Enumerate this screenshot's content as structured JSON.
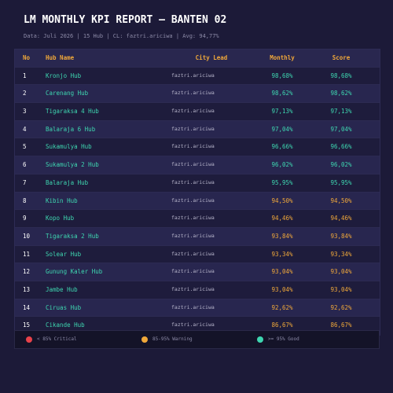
{
  "header": {
    "title": "LM MONTHLY KPI REPORT — BANTEN 02",
    "subtitle": "Data: Juli 2026 | 15 Hub | CL: faztri.ariciwa | Avg: 94,77%"
  },
  "table": {
    "columns": [
      "No",
      "Hub Name",
      "City Lead",
      "Monthly",
      "Score"
    ],
    "rows": [
      [
        "1",
        "Kronjo Hub",
        "faztri.ariciwa",
        "98,68%",
        "98,68%"
      ],
      [
        "2",
        "Carenang Hub",
        "faztri.ariciwa",
        "98,62%",
        "98,62%"
      ],
      [
        "3",
        "Tigaraksa 4 Hub",
        "faztri.ariciwa",
        "97,13%",
        "97,13%"
      ],
      [
        "4",
        "Balaraja 6 Hub",
        "faztri.ariciwa",
        "97,04%",
        "97,04%"
      ],
      [
        "5",
        "Sukamulya Hub",
        "faztri.ariciwa",
        "96,66%",
        "96,66%"
      ],
      [
        "6",
        "Sukamulya 2 Hub",
        "faztri.ariciwa",
        "96,02%",
        "96,02%"
      ],
      [
        "7",
        "Balaraja Hub",
        "faztri.ariciwa",
        "95,95%",
        "95,95%"
      ],
      [
        "8",
        "Kibin Hub",
        "faztri.ariciwa",
        "94,50%",
        "94,50%"
      ],
      [
        "9",
        "Kopo Hub",
        "faztri.ariciwa",
        "94,46%",
        "94,46%"
      ],
      [
        "10",
        "Tigaraksa 2 Hub",
        "faztri.ariciwa",
        "93,84%",
        "93,84%"
      ],
      [
        "11",
        "Solear Hub",
        "faztri.ariciwa",
        "93,34%",
        "93,34%"
      ],
      [
        "12",
        "Gunung Kaler Hub",
        "faztri.ariciwa",
        "93,04%",
        "93,04%"
      ],
      [
        "13",
        "Jambe Hub",
        "faztri.ariciwa",
        "93,04%",
        "93,04%"
      ],
      [
        "14",
        "Ciruas Hub",
        "faztri.ariciwa",
        "92,62%",
        "92,62%"
      ],
      [
        "15",
        "Cikande Hub",
        "faztri.ariciwa",
        "86,67%",
        "86,67%"
      ]
    ],
    "value_colors": [
      "#3ed6b0",
      "#3ed6b0",
      "#3ed6b0",
      "#3ed6b0",
      "#3ed6b0",
      "#3ed6b0",
      "#3ed6b0",
      "#f0a83a",
      "#f0a83a",
      "#f0a83a",
      "#f0a83a",
      "#f0a83a",
      "#f0a83a",
      "#f0a83a",
      "#f0a83a"
    ]
  },
  "legend": [
    {
      "label": "< 85% Critical",
      "color": "#e8424a"
    },
    {
      "label": "85-95% Warning",
      "color": "#f0a83a"
    },
    {
      "label": ">= 95% Good",
      "color": "#3ed6b0"
    }
  ]
}
